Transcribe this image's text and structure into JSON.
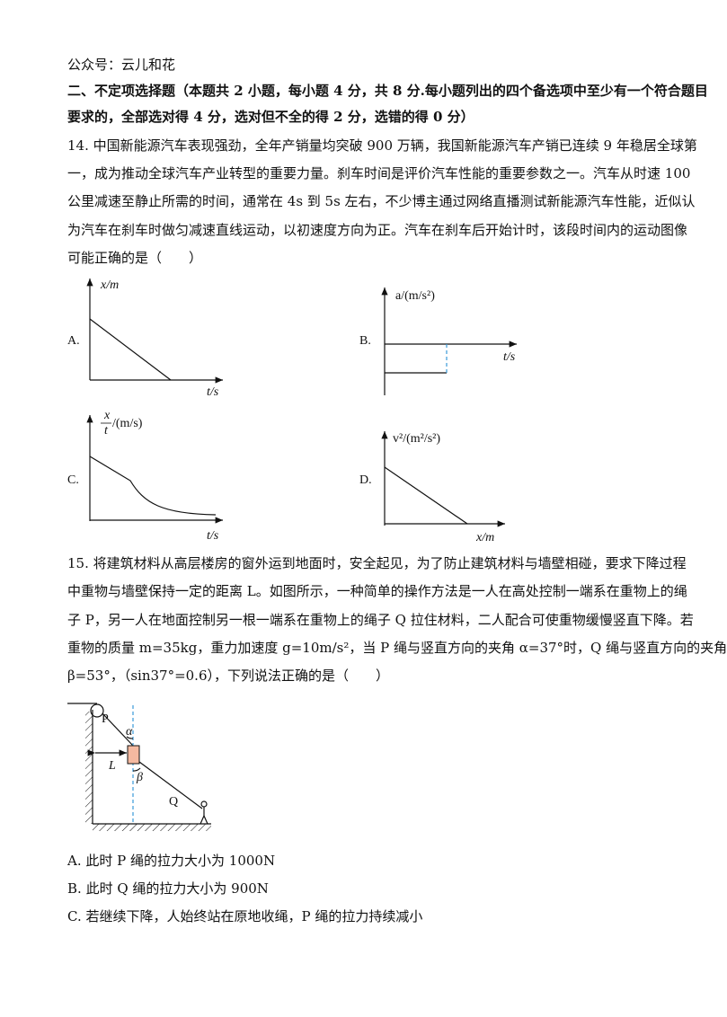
{
  "header": {
    "text": "公众号：云儿和花"
  },
  "section": {
    "lines": [
      "二、不定项选择题（本题共 2 小题，每小题 4 分，共 8 分.每小题列出的四个备选项中至少有一个符合题目",
      "要求的，全部选对得 4 分，选对但不全的得 2 分，选错的得 0 分）"
    ]
  },
  "questions": [
    {
      "lines": [
        "14. 中国新能源汽车表现强劲，全年产销量均突破 900 万辆，我国新能源汽车产销已连续 9 年稳居全球第",
        "一，成为推动全球汽车产业转型的重要力量。刹车时间是评价汽车性能的重要参数之一。汽车从时速 100",
        "公里减速至静止所需的时间，通常在 4s 到 5s 左右，不少博主通过网络直播测试新能源汽车性能，近似认",
        "为汽车在刹车时做匀减速直线运动，以初速度方向为正。汽车在刹车后开始计时，该段时间内的运动图像",
        "可能正确的是（　　）"
      ],
      "options": [
        {
          "label": "A.",
          "y_label": "x/m",
          "x_label": "t/s"
        },
        {
          "label": "B.",
          "y_label": "a/(m/s²)",
          "x_label": "t/s"
        },
        {
          "label": "C.",
          "y_label_numerator": "x",
          "y_label_denominator": "t",
          "y_label_unit": "/(m/s)",
          "x_label": "t/s"
        },
        {
          "label": "D.",
          "y_label": "v²/(m²/s²)",
          "x_label": "x/m"
        }
      ]
    },
    {
      "lines": [
        "15. 将建筑材料从高层楼房的窗外运到地面时，安全起见，为了防止建筑材料与墙壁相碰，要求下降过程",
        "中重物与墙壁保持一定的距离 L。如图所示，一种简单的操作方法是一人在高处控制一端系在重物上的绳",
        "子 P，另一人在地面控制另一根一端系在重物上的绳子 Q 拉住材料，二人配合可使重物缓慢竖直下降。若",
        "重物的质量 m=35kg，重力加速度 g=10m/s²，当 P 绳与竖直方向的夹角 α=37°时，Q 绳与竖直方向的夹角",
        "β=53°，（sin37°=0.6），下列说法正确的是（　　）"
      ],
      "figure": {
        "labels": [
          "P",
          "α",
          "L",
          "β",
          "Q"
        ]
      },
      "options": [
        {
          "label": "A.",
          "text": "此时 P 绳的拉力大小为 1000N"
        },
        {
          "label": "B.",
          "text": "此时 Q 绳的拉力大小为 900N"
        },
        {
          "label": "C.",
          "text": "若继续下降，人始终站在原地收绳，P 绳的拉力持续减小"
        }
      ]
    }
  ]
}
